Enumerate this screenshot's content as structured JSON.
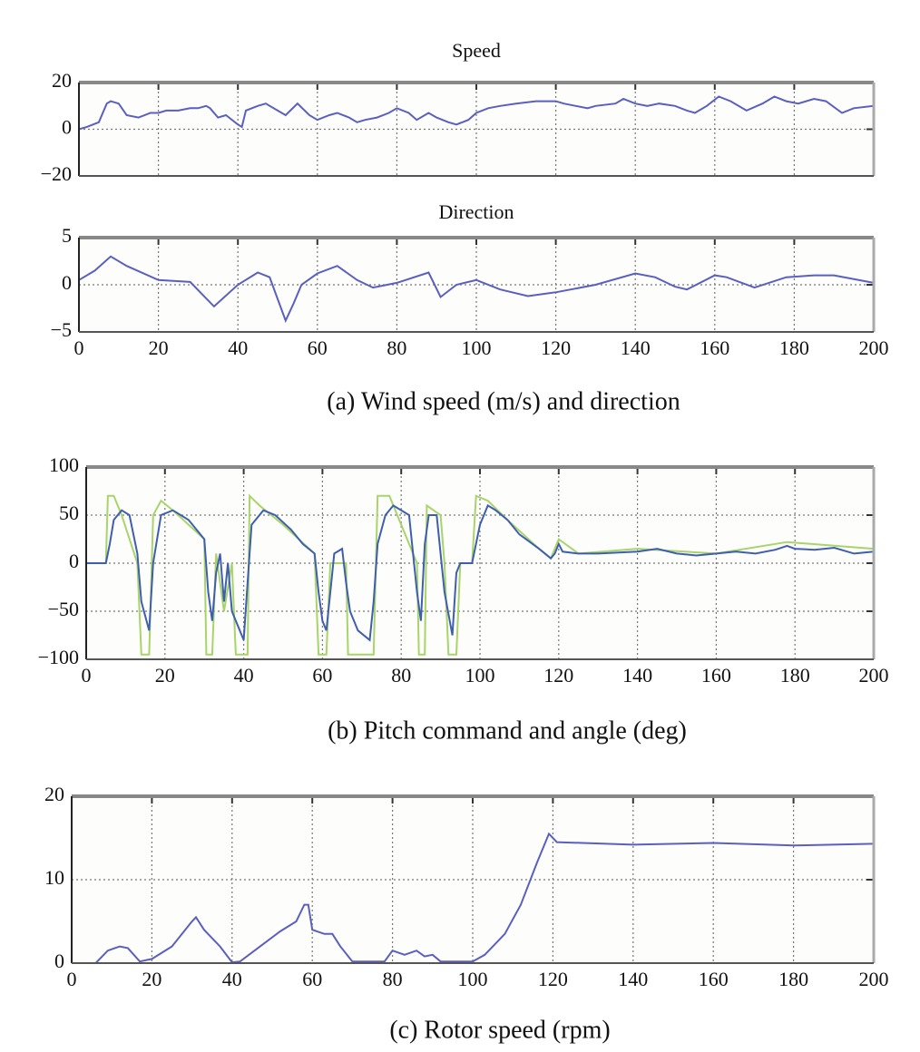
{
  "chart_data": [
    {
      "type": "line",
      "title": "Speed",
      "xlim": [
        0,
        200
      ],
      "xticks": [
        0,
        20,
        40,
        60,
        80,
        100,
        120,
        140,
        160,
        180,
        200
      ],
      "ylim": [
        -20,
        20
      ],
      "yticks": [
        {
          "value": -20,
          "label": "−20"
        },
        0,
        20
      ],
      "grid": true,
      "series": [
        {
          "color": "#5a5fc0",
          "x": [
            0,
            2,
            5,
            7,
            8,
            10,
            12,
            15,
            18,
            20,
            22,
            25,
            28,
            30,
            32,
            33,
            35,
            37,
            40,
            41,
            42,
            45,
            47,
            50,
            52,
            55,
            58,
            60,
            63,
            65,
            68,
            70,
            72,
            75,
            78,
            80,
            83,
            85,
            88,
            90,
            93,
            95,
            98,
            100,
            103,
            106,
            110,
            115,
            120,
            122,
            125,
            128,
            130,
            135,
            137,
            140,
            143,
            146,
            150,
            153,
            155,
            158,
            161,
            164,
            168,
            172,
            175,
            178,
            181,
            185,
            188,
            192,
            195,
            200
          ],
          "values": [
            0,
            1,
            3,
            11,
            12,
            11,
            6,
            5,
            7,
            7,
            8,
            8,
            9,
            9,
            10,
            9,
            5,
            6,
            2,
            1,
            8,
            10,
            11,
            8,
            6,
            11,
            6,
            4,
            6,
            7,
            5,
            3,
            4,
            5,
            7,
            9,
            7,
            4,
            7,
            5,
            3,
            2,
            4,
            7,
            9,
            10,
            11,
            12,
            12,
            11,
            10,
            9,
            10,
            11,
            13,
            11,
            10,
            11,
            10,
            8,
            7,
            10,
            14,
            12,
            8,
            11,
            14,
            12,
            11,
            13,
            12,
            7,
            9,
            10
          ]
        }
      ]
    },
    {
      "type": "line",
      "title": "Direction",
      "caption": "(a) Wind speed (m/s) and direction",
      "xlim": [
        0,
        200
      ],
      "xticks": [
        0,
        20,
        40,
        60,
        80,
        100,
        120,
        140,
        160,
        180,
        200
      ],
      "ylim": [
        -5,
        5
      ],
      "yticks": [
        {
          "value": -5,
          "label": "−5"
        },
        0,
        5
      ],
      "grid": true,
      "series": [
        {
          "color": "#5a5fc0",
          "x": [
            0,
            4,
            8,
            12,
            20,
            28,
            34,
            40,
            45,
            48,
            50,
            52,
            54,
            56,
            60,
            65,
            70,
            74,
            80,
            88,
            91,
            95,
            100,
            106,
            113,
            120,
            130,
            140,
            145,
            150,
            153,
            160,
            163,
            170,
            178,
            185,
            190,
            200
          ],
          "values": [
            0.5,
            1.5,
            3,
            2,
            0.5,
            0.3,
            -2.3,
            0,
            1.3,
            0.8,
            -1.5,
            -3.8,
            -2,
            0,
            1.2,
            2,
            0.5,
            -0.3,
            0.2,
            1.3,
            -1.3,
            0,
            0.5,
            -0.5,
            -1.2,
            -0.8,
            0,
            1.2,
            0.8,
            -0.2,
            -0.5,
            1,
            0.8,
            -0.3,
            0.8,
            1,
            1,
            0.2
          ]
        }
      ]
    },
    {
      "type": "line",
      "caption": "(b) Pitch command and angle (deg)",
      "xlim": [
        0,
        200
      ],
      "xticks": [
        0,
        20,
        40,
        60,
        80,
        100,
        120,
        140,
        160,
        180,
        200
      ],
      "ylim": [
        -100,
        100
      ],
      "yticks": [
        {
          "value": -100,
          "label": "−100"
        },
        {
          "value": -50,
          "label": "−50"
        },
        0,
        50,
        100
      ],
      "grid": true,
      "series": [
        {
          "color": "#a8d46a",
          "x": [
            0,
            5,
            5.5,
            7,
            9,
            13,
            14,
            16,
            17,
            19,
            22,
            30,
            30.5,
            32,
            33,
            35,
            37,
            38,
            41,
            41.5,
            44,
            50,
            58,
            59,
            61,
            62,
            66,
            66.5,
            73,
            74,
            77,
            78,
            84,
            84.5,
            86,
            86.5,
            90,
            91,
            92,
            94,
            95,
            98,
            99,
            102,
            107,
            115,
            118,
            120,
            125,
            140,
            160,
            178,
            200
          ],
          "values": [
            0,
            0,
            70,
            70,
            50,
            0,
            -95,
            -95,
            50,
            65,
            55,
            25,
            -95,
            -95,
            10,
            -50,
            0,
            -95,
            -95,
            70,
            60,
            40,
            10,
            -95,
            -95,
            0,
            0,
            -95,
            -95,
            70,
            70,
            60,
            0,
            -95,
            -95,
            60,
            50,
            0,
            -95,
            -95,
            0,
            0,
            70,
            65,
            45,
            15,
            5,
            25,
            10,
            15,
            10,
            22,
            15
          ]
        },
        {
          "color": "#3f5fae",
          "x": [
            0,
            5,
            6,
            7,
            9,
            11,
            13,
            14,
            16,
            17,
            19,
            22,
            26,
            30,
            31,
            32,
            33,
            34,
            35,
            36,
            37,
            40,
            41,
            42,
            45,
            48,
            52,
            55,
            58,
            59,
            60,
            61,
            62,
            63,
            65,
            66,
            67,
            69,
            72,
            73,
            74,
            76,
            78,
            82,
            84,
            85,
            86,
            87,
            89,
            91,
            93,
            94,
            95,
            98,
            100,
            102,
            104,
            107,
            110,
            115,
            118,
            119,
            120,
            121,
            125,
            130,
            140,
            145,
            150,
            155,
            160,
            165,
            170,
            175,
            178,
            180,
            185,
            190,
            195,
            200
          ],
          "values": [
            0,
            0,
            20,
            45,
            55,
            50,
            10,
            -40,
            -70,
            0,
            50,
            55,
            45,
            25,
            -30,
            -60,
            -10,
            10,
            -40,
            0,
            -50,
            -80,
            -20,
            40,
            55,
            50,
            35,
            20,
            10,
            -30,
            -60,
            -70,
            -30,
            10,
            15,
            -20,
            -50,
            -70,
            -80,
            -40,
            20,
            50,
            60,
            50,
            -30,
            -60,
            20,
            50,
            50,
            -30,
            -75,
            -10,
            0,
            0,
            40,
            60,
            55,
            45,
            30,
            15,
            5,
            10,
            20,
            12,
            10,
            10,
            12,
            15,
            10,
            8,
            10,
            12,
            10,
            14,
            18,
            15,
            14,
            16,
            10,
            12
          ]
        }
      ]
    },
    {
      "type": "line",
      "caption": "(c) Rotor speed (rpm)",
      "xlim": [
        0,
        200
      ],
      "xticks": [
        0,
        20,
        40,
        60,
        80,
        100,
        120,
        140,
        160,
        180,
        200
      ],
      "ylim": [
        0,
        20
      ],
      "yticks": [
        0,
        10,
        20
      ],
      "grid": true,
      "series": [
        {
          "color": "#5a5fc0",
          "x": [
            0,
            6,
            9,
            12,
            14,
            17,
            20,
            25,
            30,
            31,
            33,
            37,
            40,
            42,
            47,
            52,
            56,
            58,
            59,
            60,
            63,
            65,
            67,
            70,
            78,
            80,
            83,
            86,
            88,
            90,
            92,
            100,
            103,
            108,
            112,
            116,
            119,
            121,
            140,
            160,
            180,
            200
          ],
          "values": [
            0,
            0,
            1.5,
            2,
            1.8,
            0.2,
            0.5,
            2,
            5,
            5.5,
            4,
            2,
            0.1,
            0.2,
            2,
            3.8,
            5,
            7,
            7,
            4,
            3.5,
            3.5,
            2,
            0.2,
            0.2,
            1.5,
            1,
            1.5,
            0.8,
            1,
            0.2,
            0.2,
            1,
            3.5,
            7,
            12,
            15.5,
            14.5,
            14.2,
            14.4,
            14.1,
            14.3
          ]
        }
      ]
    }
  ]
}
